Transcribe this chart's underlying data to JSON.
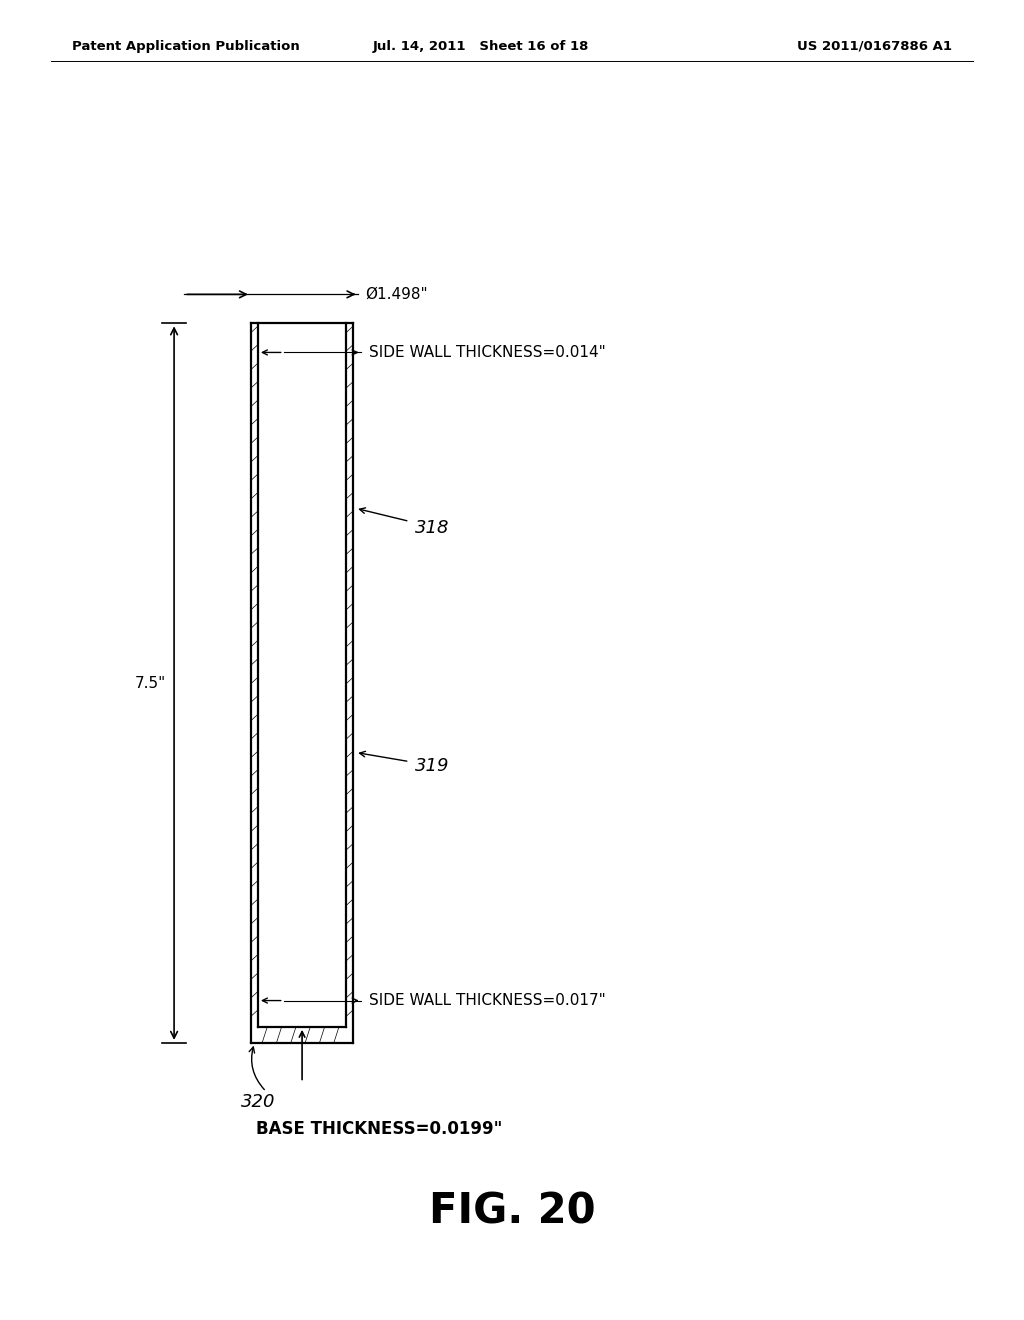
{
  "header_left": "Patent Application Publication",
  "header_mid": "Jul. 14, 2011   Sheet 16 of 18",
  "header_right": "US 2011/0167886 A1",
  "fig_label": "FIG. 20",
  "label_318": "318",
  "label_319": "319",
  "label_320": "320",
  "dim_diameter": "Ø1.498\"",
  "dim_side_wall_top": "SIDE WALL THICKNESS=0.014\"",
  "dim_side_wall_bottom": "SIDE WALL THICKNESS=0.017\"",
  "dim_base": "BASE THICKNESS=0.0199\"",
  "dim_height": "7.5\"",
  "background_color": "#ffffff",
  "line_color": "#000000",
  "text_color": "#000000",
  "header_fontsize": 9.5,
  "label_fontsize": 13,
  "dim_fontsize": 11,
  "fig_label_fontsize": 30,
  "cl": 0.245,
  "cr": 0.345,
  "ct": 0.755,
  "cb": 0.21,
  "wt": 0.007,
  "bt": 0.012
}
